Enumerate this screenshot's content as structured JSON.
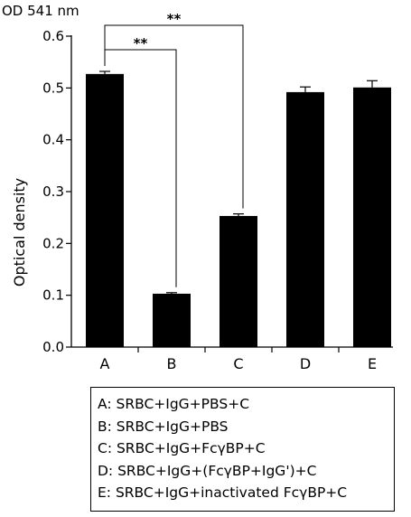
{
  "chart_data": {
    "type": "bar",
    "unit_label": "OD 541 nm",
    "ylabel": "Optical density",
    "xlabel": "",
    "categories": [
      "A",
      "B",
      "C",
      "D",
      "E"
    ],
    "values": [
      0.527,
      0.103,
      0.253,
      0.492,
      0.501
    ],
    "errors": [
      0.005,
      0.002,
      0.004,
      0.01,
      0.013
    ],
    "ylim": [
      0,
      0.6
    ],
    "yticks": [
      "0.0",
      "0.1",
      "0.2",
      "0.3",
      "0.4",
      "0.5",
      "0.6"
    ],
    "bar_color": "#000000",
    "grid": false,
    "significance": [
      {
        "from": "A",
        "to": "B",
        "label": "**"
      },
      {
        "from": "A",
        "to": "C",
        "label": "**"
      }
    ]
  },
  "legend": {
    "items": [
      "A: SRBC+IgG+PBS+C",
      "B: SRBC+IgG+PBS",
      "C: SRBC+IgG+FcγBP+C",
      "D: SRBC+IgG+(FcγBP+IgG')+C",
      "E: SRBC+IgG+inactivated FcγBP+C"
    ]
  }
}
